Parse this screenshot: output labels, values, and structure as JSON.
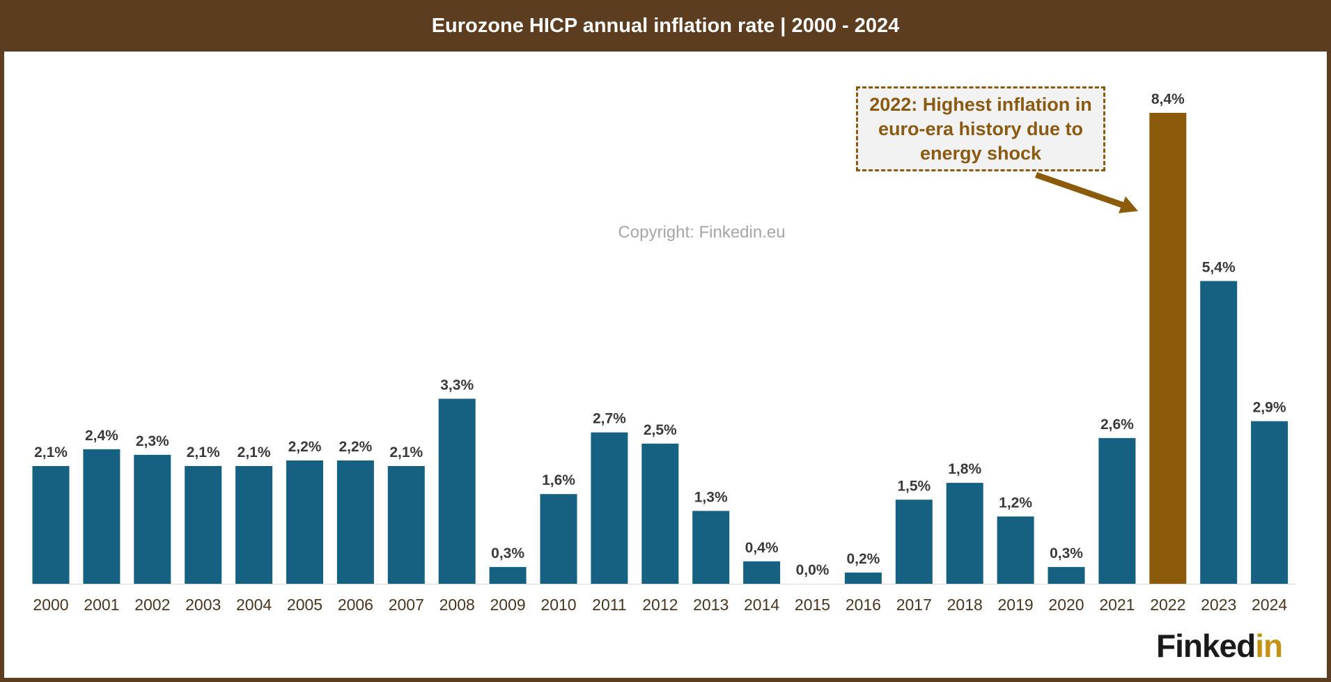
{
  "title": "Eurozone HICP annual inflation rate | 2000 - 2024",
  "watermark": "Copyright: Finkedin.eu",
  "annotation": "2022: Highest inflation in euro-era history due to energy shock",
  "logo": {
    "part1": "Finked",
    "part2": "in"
  },
  "colors": {
    "bar": "#166082",
    "highlight": "#8b5a0a",
    "frame": "#5c3d20",
    "accent": "#c69214"
  },
  "chart_data": {
    "type": "bar",
    "title": "Eurozone HICP annual inflation rate | 2000 - 2024",
    "xlabel": "",
    "ylabel": "",
    "categories": [
      "2000",
      "2001",
      "2002",
      "2003",
      "2004",
      "2005",
      "2006",
      "2007",
      "2008",
      "2009",
      "2010",
      "2011",
      "2012",
      "2013",
      "2014",
      "2015",
      "2016",
      "2017",
      "2018",
      "2019",
      "2020",
      "2021",
      "2022",
      "2023",
      "2024"
    ],
    "values": [
      2.1,
      2.4,
      2.3,
      2.1,
      2.1,
      2.2,
      2.2,
      2.1,
      3.3,
      0.3,
      1.6,
      2.7,
      2.5,
      1.3,
      0.4,
      0.0,
      0.2,
      1.5,
      1.8,
      1.2,
      0.3,
      2.6,
      8.4,
      5.4,
      2.9
    ],
    "labels": [
      "2,1%",
      "2,4%",
      "2,3%",
      "2,1%",
      "2,1%",
      "2,2%",
      "2,2%",
      "2,1%",
      "3,3%",
      "0,3%",
      "1,6%",
      "2,7%",
      "2,5%",
      "1,3%",
      "0,4%",
      "0,0%",
      "0,2%",
      "1,5%",
      "1,8%",
      "1,2%",
      "0,3%",
      "2,6%",
      "8,4%",
      "5,4%",
      "2,9%"
    ],
    "highlight": "2022",
    "ylim": [
      0,
      8.4
    ],
    "grid": false,
    "legend": "none"
  }
}
